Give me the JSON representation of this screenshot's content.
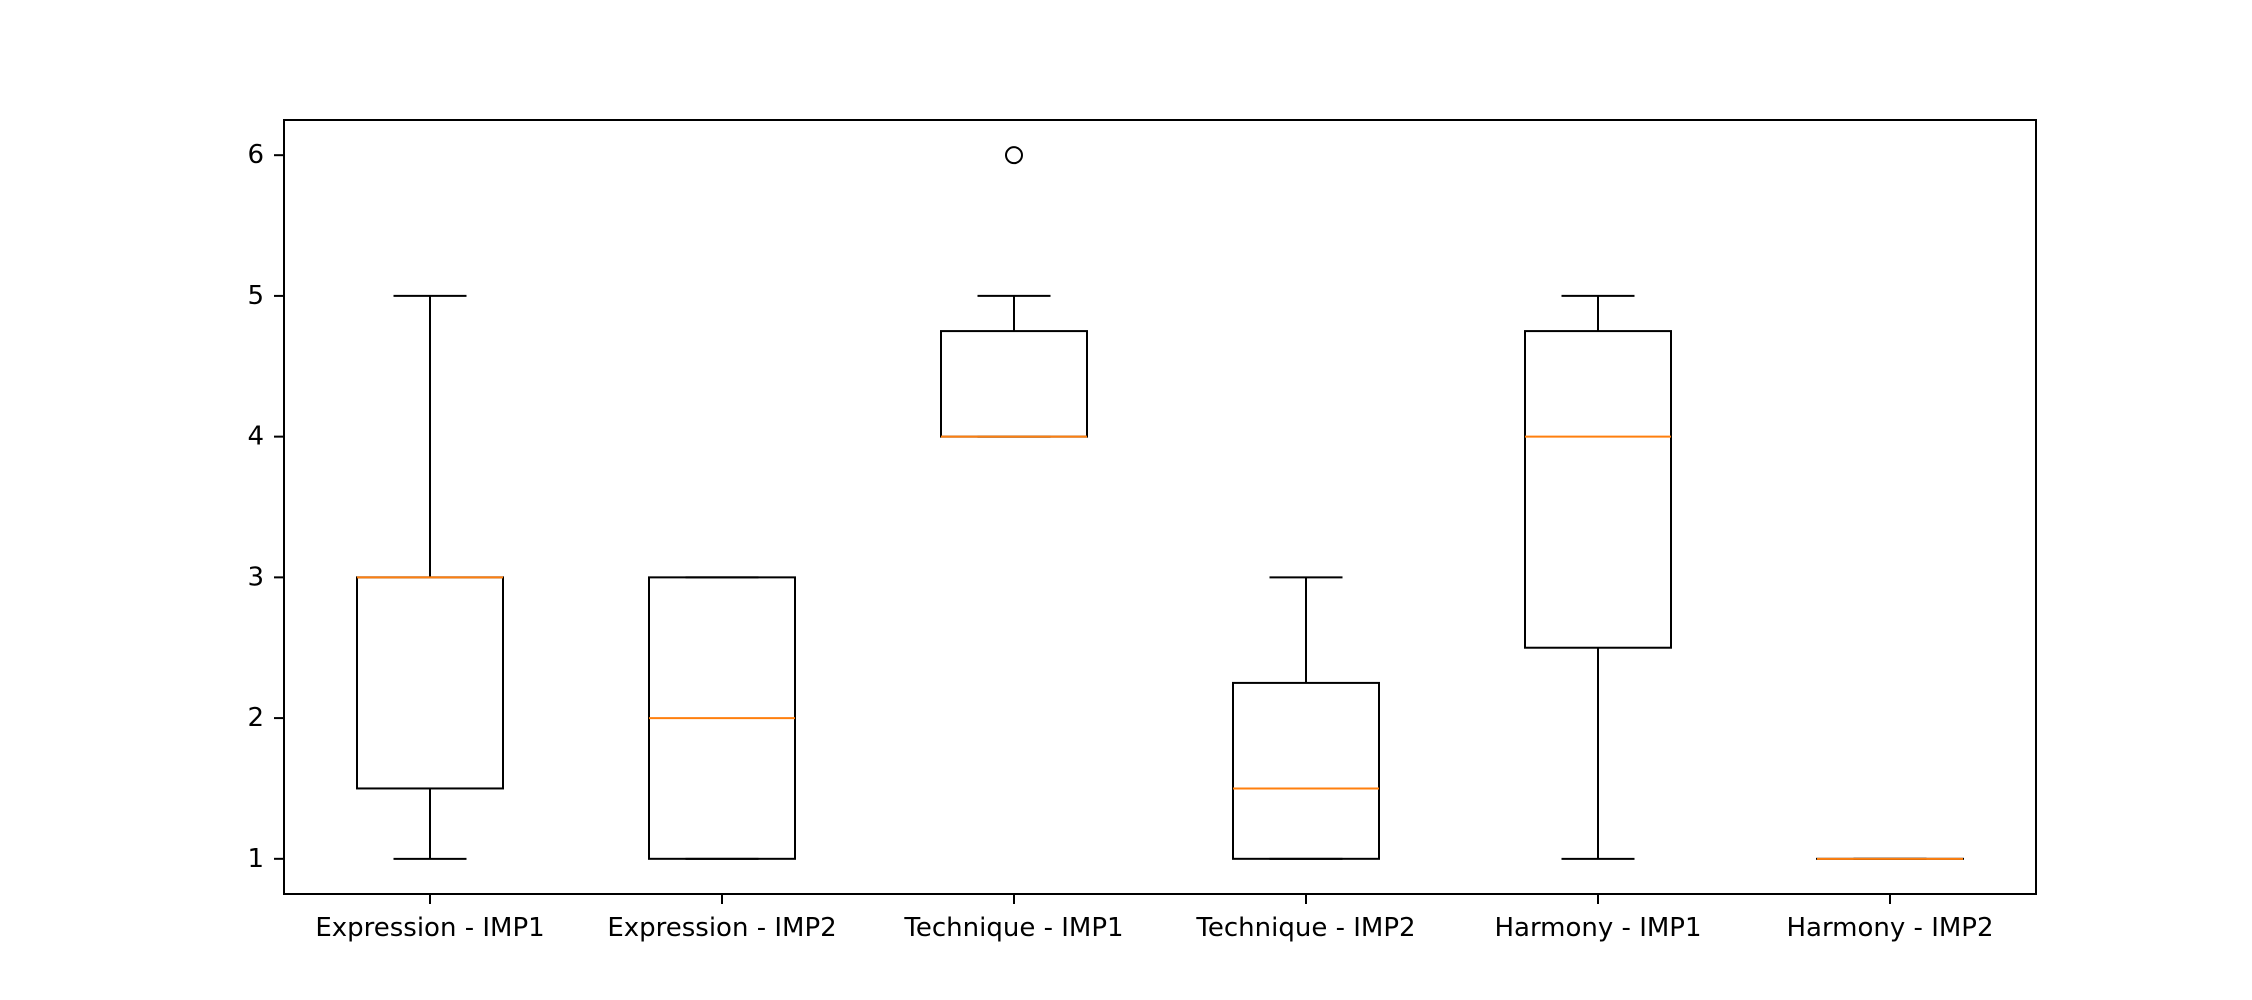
{
  "chart_data": {
    "type": "boxplot",
    "title": "",
    "xlabel": "",
    "ylabel": "",
    "ylim": [
      0.75,
      6.25
    ],
    "yticks": [
      1,
      2,
      3,
      4,
      5,
      6
    ],
    "grid": false,
    "categories": [
      "Expression - IMP1",
      "Expression - IMP2",
      "Technique - IMP1",
      "Technique - IMP2",
      "Harmony - IMP1",
      "Harmony - IMP2"
    ],
    "boxes": [
      {
        "whisker_low": 1,
        "q1": 1.5,
        "median": 3,
        "q3": 3,
        "whisker_high": 5,
        "outliers": []
      },
      {
        "whisker_low": 1,
        "q1": 1,
        "median": 2,
        "q3": 3,
        "whisker_high": 3,
        "outliers": []
      },
      {
        "whisker_low": 4,
        "q1": 4,
        "median": 4,
        "q3": 4.75,
        "whisker_high": 5,
        "outliers": [
          6
        ]
      },
      {
        "whisker_low": 1,
        "q1": 1,
        "median": 1.5,
        "q3": 2.25,
        "whisker_high": 3,
        "outliers": []
      },
      {
        "whisker_low": 1,
        "q1": 2.5,
        "median": 4,
        "q3": 4.75,
        "whisker_high": 5,
        "outliers": []
      },
      {
        "whisker_low": 1,
        "q1": 1,
        "median": 1,
        "q3": 1,
        "whisker_high": 1,
        "outliers": []
      }
    ],
    "colors": {
      "box": "#000000",
      "median": "#ff7f0e",
      "outlier": "#000000"
    }
  }
}
